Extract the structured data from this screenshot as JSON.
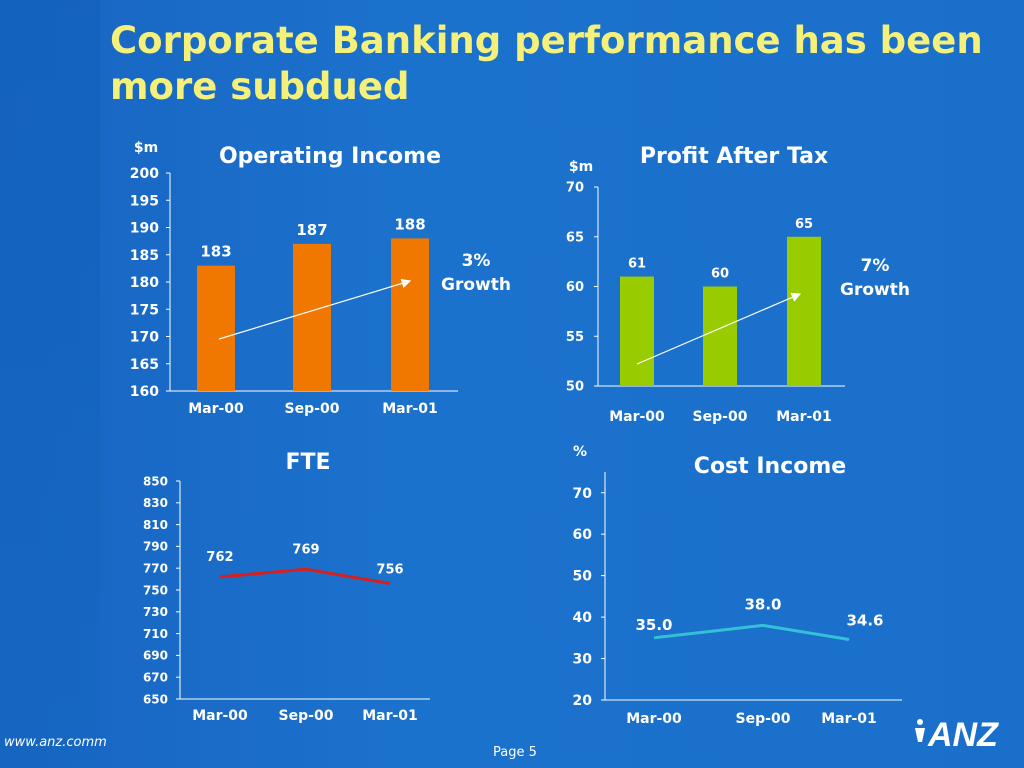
{
  "slide": {
    "title": "Corporate Banking performance has been more subdued",
    "footer_url": "www.anz.comm",
    "page_label": "Page 5",
    "logo_text": "ANZ"
  },
  "colors": {
    "title": "#f5f07a",
    "operating_income_bar": "#f07800",
    "profit_bar": "#99cc00",
    "fte_line": "#d61f1f",
    "cost_income_line": "#33c0d8",
    "arrow": "#ffffff"
  },
  "chart_data": [
    {
      "id": "operating_income",
      "type": "bar",
      "title": "Operating Income",
      "ylabel": "$m",
      "categories": [
        "Mar-00",
        "Sep-00",
        "Mar-01"
      ],
      "values": [
        183,
        187,
        188
      ],
      "value_labels": [
        "183",
        "187",
        "188"
      ],
      "ylim": [
        160,
        200
      ],
      "yticks": [
        "160",
        "165",
        "170",
        "175",
        "180",
        "185",
        "190",
        "195",
        "200"
      ],
      "annotation": [
        "3%",
        "Growth"
      ],
      "trend_arrow": true,
      "grid": false
    },
    {
      "id": "profit_after_tax",
      "type": "bar",
      "title": "Profit After Tax",
      "ylabel": "$m",
      "categories": [
        "Mar-00",
        "Sep-00",
        "Mar-01"
      ],
      "values": [
        61,
        60,
        65
      ],
      "value_labels": [
        "61",
        "60",
        "65"
      ],
      "ylim": [
        50,
        70
      ],
      "yticks": [
        "50",
        "55",
        "60",
        "65",
        "70"
      ],
      "annotation": [
        "7%",
        "Growth"
      ],
      "trend_arrow": true,
      "grid": false
    },
    {
      "id": "fte",
      "type": "line",
      "title": "FTE",
      "ylabel": "",
      "categories": [
        "Mar-00",
        "Sep-00",
        "Mar-01"
      ],
      "values": [
        762,
        769,
        756
      ],
      "value_labels": [
        "762",
        "769",
        "756"
      ],
      "ylim": [
        650,
        850
      ],
      "yticks": [
        "650",
        "670",
        "690",
        "710",
        "730",
        "750",
        "770",
        "790",
        "810",
        "830",
        "850"
      ],
      "grid": false
    },
    {
      "id": "cost_income",
      "type": "line",
      "title": "Cost Income",
      "ylabel": "%",
      "categories": [
        "Mar-00",
        "Sep-00",
        "Mar-01"
      ],
      "values": [
        35.0,
        38.0,
        34.6
      ],
      "value_labels": [
        "35.0",
        "38.0",
        "34.6"
      ],
      "ylim": [
        20,
        75
      ],
      "yticks": [
        "20",
        "30",
        "40",
        "50",
        "60",
        "70"
      ],
      "grid": false
    }
  ]
}
